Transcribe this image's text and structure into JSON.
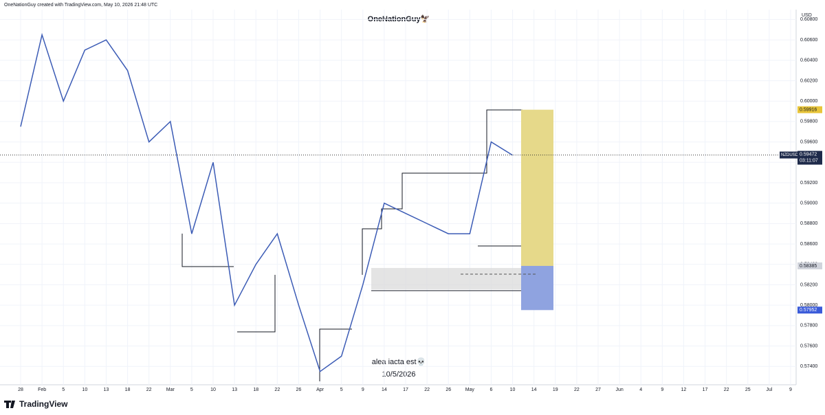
{
  "chart_data": {
    "type": "line",
    "header": "OneNationGuy created with TradingView.com, May 10, 2026 21:48 UTC",
    "title": "OneNationGuy🦅",
    "currency": "USD",
    "annotation": "alea iacta est💀",
    "date_note": "10/5/2026",
    "brand": "TradingView",
    "symbol": "NZDUSD",
    "last_price": 0.59472,
    "countdown": "03:11:07",
    "target": 0.59916,
    "entry": 0.58385,
    "stop": 0.57952,
    "categories": [
      "28",
      "Feb",
      "5",
      "10",
      "13",
      "18",
      "22",
      "Mar",
      "5",
      "10",
      "13",
      "18",
      "22",
      "26",
      "Apr",
      "5",
      "9",
      "14",
      "17",
      "22",
      "26",
      "May",
      "6",
      "10",
      "14",
      "19",
      "22",
      "27",
      "Jun",
      "4",
      "9",
      "12",
      "17",
      "22",
      "25",
      "Jul",
      "9"
    ],
    "series": [
      {
        "name": "NZDUSD",
        "color": "#3b5bb5",
        "values": [
          0.5975,
          0.6065,
          0.6,
          0.605,
          0.606,
          0.603,
          0.596,
          0.598,
          0.587,
          0.594,
          0.58,
          0.584,
          0.587,
          0.58,
          0.5735,
          0.575,
          0.582,
          0.59,
          0.589,
          0.588,
          0.587,
          0.587,
          0.596,
          0.5947,
          null,
          null,
          null,
          null,
          null,
          null,
          null,
          null,
          null,
          null,
          null,
          null,
          null
        ]
      }
    ],
    "ylim": [
      0.5722,
      0.6087
    ],
    "yticks": [
      {
        "value": 0.608,
        "label": "0.60800"
      },
      {
        "value": 0.606,
        "label": "0.60600"
      },
      {
        "value": 0.604,
        "label": "0.60400"
      },
      {
        "value": 0.602,
        "label": "0.60200"
      },
      {
        "value": 0.6,
        "label": "0.60000"
      },
      {
        "value": 0.598,
        "label": "0.59800"
      },
      {
        "value": 0.596,
        "label": "0.59600"
      },
      {
        "value": 0.594,
        "label": "0.59400"
      },
      {
        "value": 0.592,
        "label": "0.59200"
      },
      {
        "value": 0.59,
        "label": "0.59000"
      },
      {
        "value": 0.588,
        "label": "0.58800"
      },
      {
        "value": 0.586,
        "label": "0.58600"
      },
      {
        "value": 0.584,
        "label": "0.58400"
      },
      {
        "value": 0.582,
        "label": "0.58200"
      },
      {
        "value": 0.58,
        "label": "0.58000"
      },
      {
        "value": 0.578,
        "label": "0.57800"
      },
      {
        "value": 0.576,
        "label": "0.57600"
      },
      {
        "value": 0.574,
        "label": "0.57400"
      }
    ],
    "grid": true,
    "target_color": "#e6d98a",
    "stop_color": "#8fa3e0"
  }
}
